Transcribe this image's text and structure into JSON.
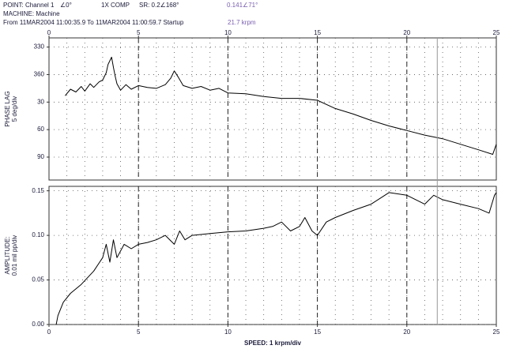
{
  "header": {
    "point": "POINT: Channel 1",
    "point_angle": "∠0°",
    "comp": "1X COMP",
    "sr": "SR: 0.2∠168°",
    "cursor_value": "0.141∠71°",
    "machine": "MACHINE: Machine",
    "range": "From 11MAR2004 11:00:35.9 To 11MAR2004 11:00:59.7 Startup"
  },
  "cursor": {
    "x": 21.7,
    "label": "21.7 krpm",
    "color": "#999999"
  },
  "chart_data": [
    {
      "type": "line",
      "ylabel": [
        "PHASE LAG",
        "5 deg/div"
      ],
      "xlim": [
        0,
        25
      ],
      "xticks": [
        0,
        5,
        10,
        15,
        20,
        25
      ],
      "ylim": [
        475,
        320
      ],
      "yticks": [
        330,
        360,
        {
          "value": 390,
          "label": "30"
        },
        {
          "value": 420,
          "label": "60"
        },
        {
          "value": 450,
          "label": "90"
        }
      ],
      "grid": true,
      "x": [
        0.9,
        1.2,
        1.5,
        1.8,
        2,
        2.3,
        2.5,
        2.8,
        3,
        3.2,
        3.3,
        3.5,
        3.6,
        3.7,
        3.8,
        4,
        4.3,
        4.6,
        5,
        5.5,
        6,
        6.5,
        6.8,
        7,
        7.2,
        7.5,
        8,
        8.5,
        9,
        9.5,
        10,
        11,
        12,
        13,
        14,
        15,
        16,
        17,
        18,
        19,
        20,
        21,
        22,
        23,
        24,
        24.8,
        25
      ],
      "series": [
        {
          "color": "#000000",
          "values": [
            383,
            376,
            379,
            373,
            378,
            370,
            374,
            368,
            366,
            358,
            349,
            341,
            352,
            362,
            370,
            377,
            371,
            376,
            372,
            374,
            375,
            371,
            364,
            356,
            362,
            372,
            375,
            373,
            377,
            375,
            380,
            381,
            384,
            386,
            386,
            388,
            397,
            403,
            410,
            416,
            421,
            426,
            430,
            436,
            442,
            447,
            436
          ]
        }
      ]
    },
    {
      "type": "line",
      "ylabel": [
        "AMPLITUDE:",
        "0.01 mil pp/div"
      ],
      "xlabel": "SPEED: 1 krpm/div",
      "xlim": [
        0,
        25
      ],
      "xticks": [
        0,
        5,
        10,
        15,
        20,
        25
      ],
      "ylim": [
        0,
        0.155
      ],
      "yticks": [
        {
          "value": 0,
          "label": "0.00"
        },
        0.05,
        {
          "value": 0.1,
          "label": "0.10"
        },
        0.15
      ],
      "grid": true,
      "x": [
        0.4,
        0.5,
        0.8,
        1.2,
        1.8,
        2.5,
        3,
        3.2,
        3.4,
        3.6,
        3.8,
        4.2,
        4.6,
        5,
        5.5,
        6,
        6.5,
        7,
        7.3,
        7.6,
        8,
        9,
        10,
        11,
        12,
        12.5,
        13,
        13.5,
        14,
        14.3,
        14.7,
        15,
        15.5,
        16,
        17,
        18,
        19,
        20,
        20.5,
        21,
        21.5,
        22,
        23,
        24,
        24.6,
        24.9,
        25
      ],
      "series": [
        {
          "color": "#000000",
          "values": [
            0,
            0.01,
            0.025,
            0.035,
            0.045,
            0.06,
            0.075,
            0.09,
            0.07,
            0.095,
            0.075,
            0.09,
            0.085,
            0.09,
            0.092,
            0.095,
            0.1,
            0.09,
            0.105,
            0.095,
            0.1,
            0.102,
            0.104,
            0.105,
            0.108,
            0.11,
            0.115,
            0.105,
            0.11,
            0.12,
            0.105,
            0.1,
            0.115,
            0.12,
            0.128,
            0.135,
            0.148,
            0.145,
            0.14,
            0.135,
            0.145,
            0.14,
            0.135,
            0.13,
            0.125,
            0.145,
            0.148
          ]
        }
      ]
    }
  ]
}
